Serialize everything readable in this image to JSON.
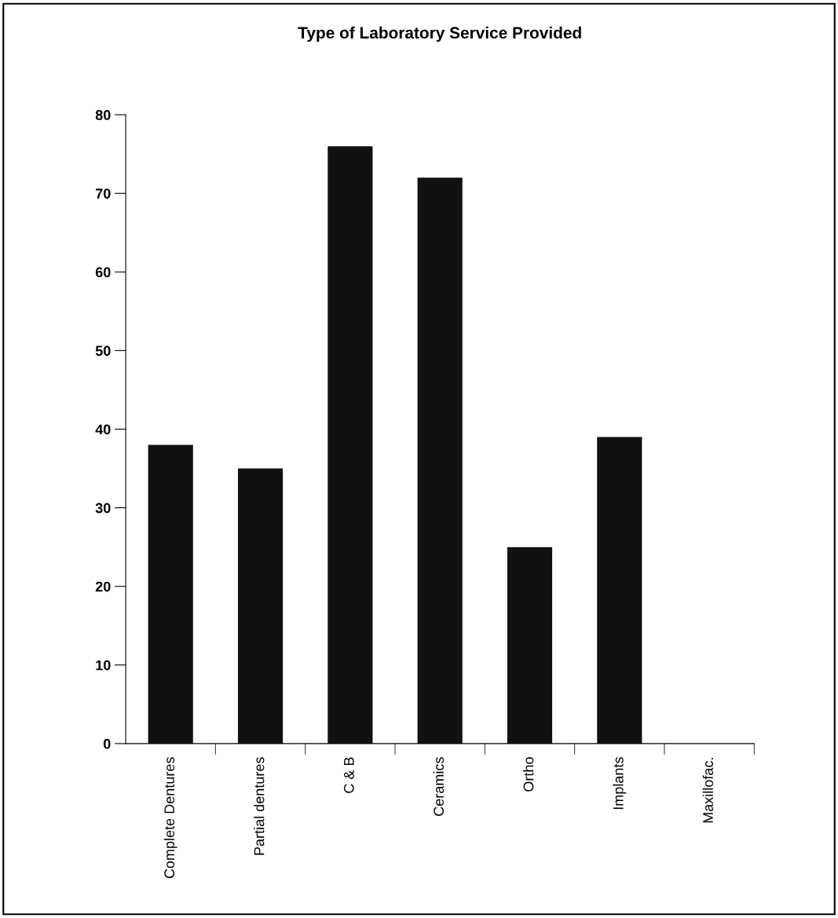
{
  "chart_data": {
    "type": "bar",
    "title": "Type of Laboratory Service Provided",
    "categories": [
      "Complete Dentures",
      "Partial dentures",
      "C & B",
      "Ceramics",
      "Ortho",
      "Implants",
      "Maxillofac."
    ],
    "values": [
      38,
      35,
      76,
      72,
      25,
      39,
      0
    ],
    "color": "#111111",
    "ylim": [
      0,
      80
    ],
    "yticks": [
      0,
      10,
      20,
      30,
      40,
      50,
      60,
      70,
      80
    ],
    "grid": false
  }
}
